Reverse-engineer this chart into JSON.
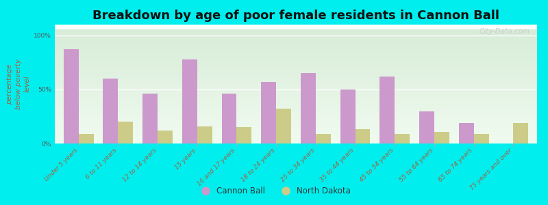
{
  "title": "Breakdown by age of poor female residents in Cannon Ball",
  "ylabel": "percentage\nbelow poverty\nlevel",
  "categories": [
    "Under 5 years",
    "6 to 11 years",
    "12 to 14 years",
    "15 years",
    "16 and 17 years",
    "18 to 24 years",
    "25 to 34 years",
    "35 to 44 years",
    "45 to 54 years",
    "55 to 64 years",
    "65 to 74 years",
    "75 years and over"
  ],
  "cannon_ball": [
    87,
    60,
    46,
    78,
    46,
    57,
    65,
    50,
    62,
    30,
    19,
    0
  ],
  "north_dakota": [
    9,
    20,
    12,
    16,
    15,
    32,
    9,
    13,
    9,
    11,
    9,
    19
  ],
  "cannon_ball_color": "#cc99cc",
  "north_dakota_color": "#cccc88",
  "yticks": [
    0,
    50,
    100
  ],
  "ytick_labels": [
    "0%",
    "50%",
    "100%"
  ],
  "bar_width": 0.38,
  "figsize": [
    8.0,
    3.0
  ],
  "dpi": 100,
  "outer_bg": "#00eeee",
  "plot_bg_top": "#d8ecd8",
  "plot_bg_bottom": "#f0fbf0",
  "title_fontsize": 13,
  "axis_label_fontsize": 7.5,
  "tick_label_fontsize": 6.5,
  "legend_fontsize": 8.5,
  "tick_color": "#996644",
  "ylabel_color": "#996644",
  "watermark": "City-Data.com",
  "watermark_color": "#cccccc"
}
